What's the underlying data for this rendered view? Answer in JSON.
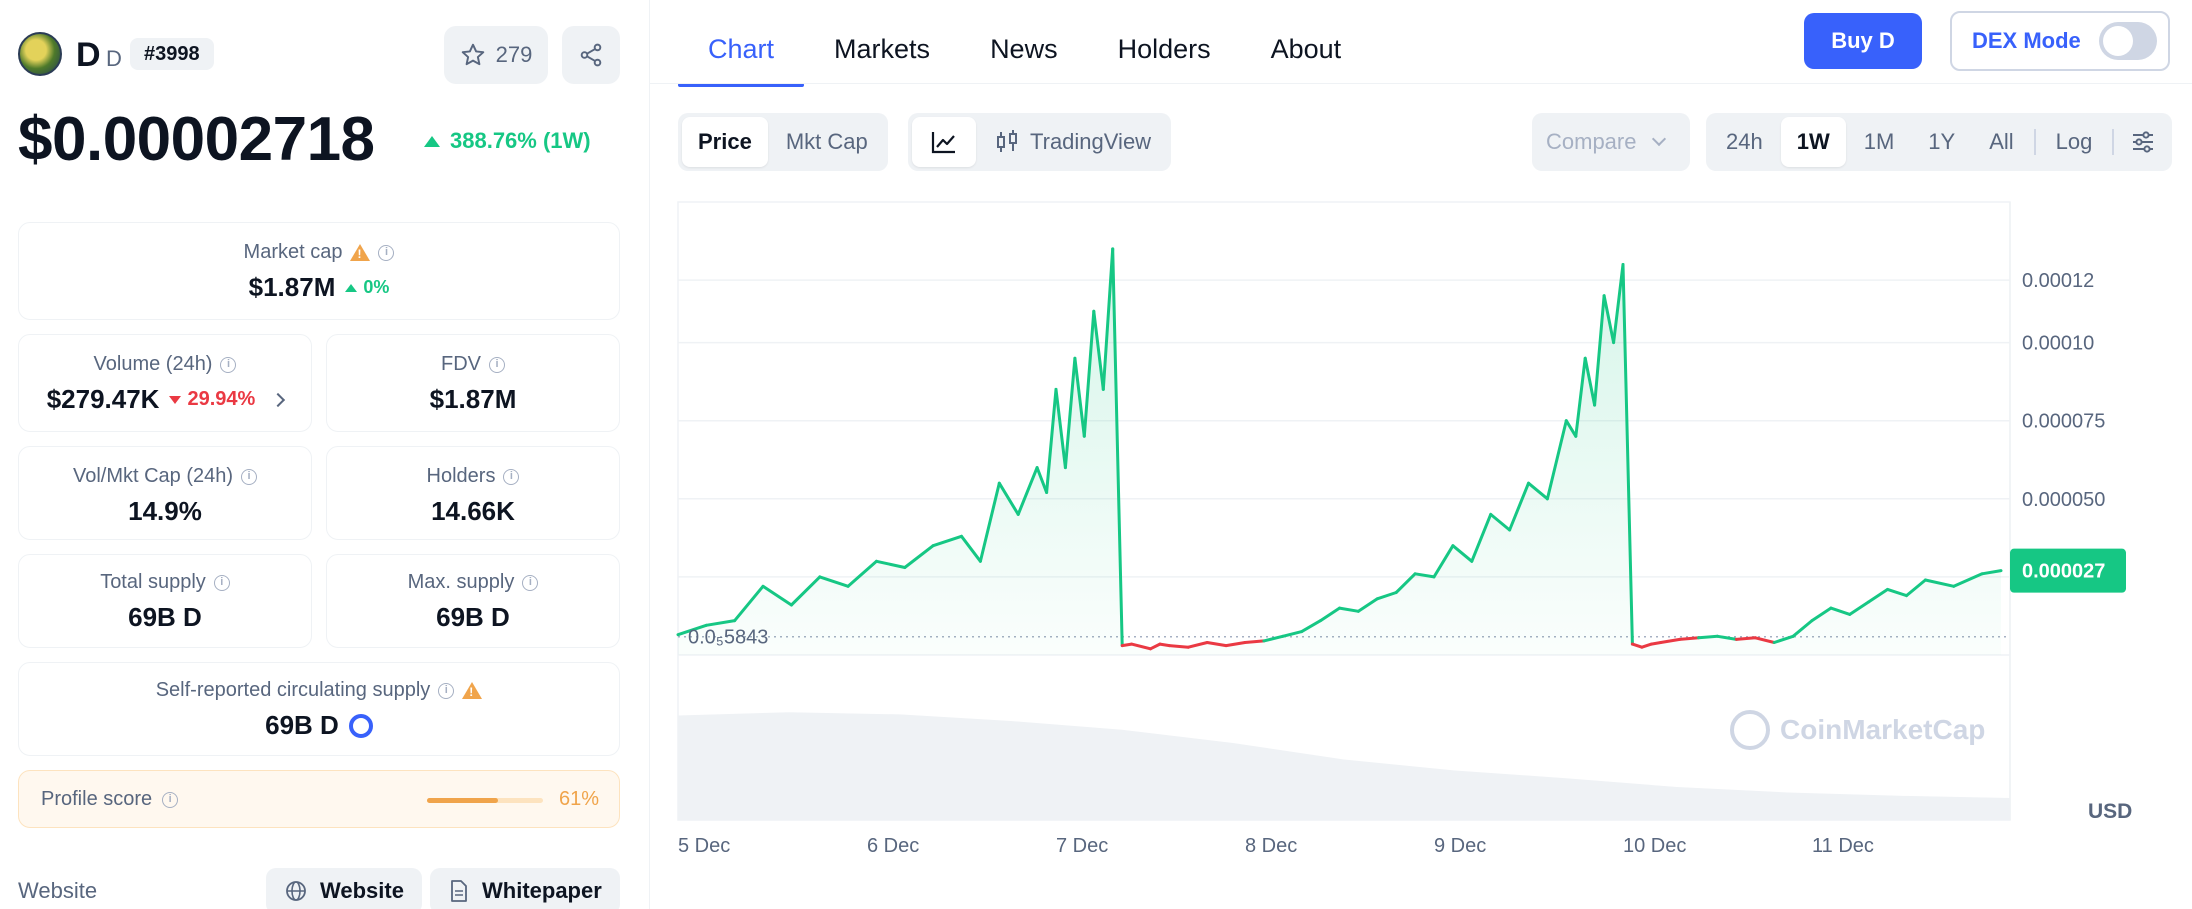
{
  "coin": {
    "name": "D",
    "symbol": "D",
    "rank": "#3998",
    "watchlist_count": "279",
    "price": "$0.00002718",
    "change": "388.76% (1W)"
  },
  "stats": {
    "market_cap": {
      "label": "Market cap",
      "value": "$1.87M",
      "change": "0%"
    },
    "volume": {
      "label": "Volume (24h)",
      "value": "$279.47K",
      "change": "29.94%"
    },
    "fdv": {
      "label": "FDV",
      "value": "$1.87M"
    },
    "vol_mkt_cap": {
      "label": "Vol/Mkt Cap (24h)",
      "value": "14.9%"
    },
    "holders": {
      "label": "Holders",
      "value": "14.66K"
    },
    "total_supply": {
      "label": "Total supply",
      "value": "69B D"
    },
    "max_supply": {
      "label": "Max. supply",
      "value": "69B D"
    },
    "circulating": {
      "label": "Self-reported circulating supply",
      "value": "69B D"
    }
  },
  "profile": {
    "label": "Profile score",
    "value": "61%",
    "fraction": 0.61
  },
  "links": {
    "label": "Website",
    "website": "Website",
    "whitepaper": "Whitepaper"
  },
  "tabs": [
    "Chart",
    "Markets",
    "News",
    "Holders",
    "About"
  ],
  "buttons": {
    "buy": "Buy D",
    "dex_mode": "DEX Mode",
    "compare": "Compare"
  },
  "chart_mode": {
    "price": "Price",
    "mkt_cap": "Mkt Cap",
    "tradingview": "TradingView"
  },
  "ranges": [
    "24h",
    "1W",
    "1M",
    "1Y",
    "All"
  ],
  "log_label": "Log",
  "watermark": "CoinMarketCap",
  "currency": "USD",
  "colors": {
    "accent": "#3861fb",
    "up": "#16c784",
    "down": "#ea3943",
    "warn": "#f0a44b"
  },
  "chart_data": {
    "type": "line",
    "currency": "USD",
    "x_labels": [
      "5 Dec",
      "6 Dec",
      "7 Dec",
      "8 Dec",
      "9 Dec",
      "10 Dec",
      "11 Dec"
    ],
    "y_ticks": [
      "0.00012",
      "0.00010",
      "0.000075",
      "0.000050"
    ],
    "y_tick_values": [
      0.00012,
      0.0001,
      7.5e-05,
      5e-05
    ],
    "ylim": [
      0,
      0.000145
    ],
    "baseline_label": "0.0₅5843",
    "baseline_value": 5.843e-06,
    "current_label": "0.000027",
    "current_value": 2.7e-05,
    "grid": true,
    "x_days": [
      0,
      0.15,
      0.3,
      0.45,
      0.6,
      0.75,
      0.9,
      1.05,
      1.2,
      1.35,
      1.5,
      1.6,
      1.7,
      1.8,
      1.9,
      1.95,
      2.0,
      2.05,
      2.1,
      2.15,
      2.2,
      2.25,
      2.3,
      2.35,
      2.4,
      2.5,
      2.55,
      2.6,
      2.7,
      2.8,
      2.9,
      3.0,
      3.1,
      3.2,
      3.3,
      3.4,
      3.5,
      3.6,
      3.7,
      3.8,
      3.9,
      4.0,
      4.1,
      4.2,
      4.3,
      4.4,
      4.5,
      4.6,
      4.7,
      4.75,
      4.8,
      4.85,
      4.9,
      4.95,
      5.0,
      5.05,
      5.1,
      5.15,
      5.2,
      5.3,
      5.4,
      5.5,
      5.6,
      5.7,
      5.8,
      5.9,
      6.0,
      6.1,
      6.2,
      6.3,
      6.4,
      6.5,
      6.6,
      6.75,
      6.9,
      7.0
    ],
    "values": [
      6.5e-06,
      9.5e-06,
      1.1e-05,
      2.2e-05,
      1.6e-05,
      2.5e-05,
      2.2e-05,
      3e-05,
      2.8e-05,
      3.5e-05,
      3.8e-05,
      3e-05,
      5.5e-05,
      4.5e-05,
      6e-05,
      5.2e-05,
      8.5e-05,
      6e-05,
      9.5e-05,
      7e-05,
      0.00011,
      8.5e-05,
      0.00013,
      3e-06,
      3.5e-06,
      2e-06,
      3.5e-06,
      3e-06,
      2.5e-06,
      4e-06,
      3e-06,
      4e-06,
      4.5e-06,
      6e-06,
      7.5e-06,
      1.1e-05,
      1.5e-05,
      1.4e-05,
      1.8e-05,
      2e-05,
      2.6e-05,
      2.5e-05,
      3.5e-05,
      3e-05,
      4.5e-05,
      4e-05,
      5.5e-05,
      5e-05,
      7.5e-05,
      7e-05,
      9.5e-05,
      8e-05,
      0.000115,
      0.0001,
      0.000125,
      3.5e-06,
      2.5e-06,
      3.5e-06,
      4e-06,
      5e-06,
      5.5e-06,
      6e-06,
      5e-06,
      5.5e-06,
      4e-06,
      6e-06,
      1.1e-05,
      1.5e-05,
      1.3e-05,
      1.7e-05,
      2.1e-05,
      1.9e-05,
      2.4e-05,
      2.2e-05,
      2.6e-05,
      2.7e-05
    ],
    "volume_relative": [
      0.95,
      0.98,
      0.96,
      0.9,
      0.82,
      0.7,
      0.55,
      0.45,
      0.38,
      0.3,
      0.25,
      0.22,
      0.2
    ]
  }
}
